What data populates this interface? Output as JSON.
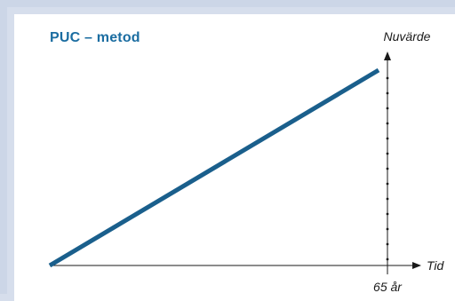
{
  "chart_data": {
    "type": "line",
    "title": "PUC – metod",
    "ylabel": "Nuvärde",
    "xlabel": "Tid",
    "x_tick_labels": [
      "65 år"
    ],
    "series": [
      {
        "x": [
          0,
          1
        ],
        "y": [
          0,
          1
        ]
      }
    ],
    "line_color": "#1a5f8c",
    "title_color": "#1b6da1",
    "grid": false
  },
  "icons": [
    "arrow-up-icon",
    "arrow-right-icon"
  ]
}
